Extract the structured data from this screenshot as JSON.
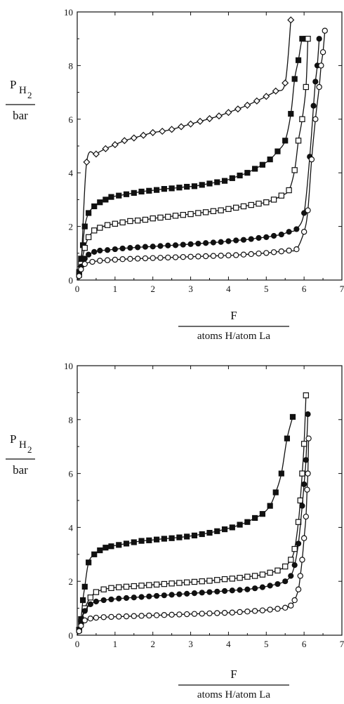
{
  "chart_data": [
    {
      "type": "scatter",
      "title": "",
      "xlabel": "F",
      "xlabel_unit": "atoms H/atom La",
      "ylabel_main": "P",
      "ylabel_sub": "H",
      "ylabel_subsub": "2",
      "ylabel_unit": "bar",
      "xlim": [
        0,
        7
      ],
      "ylim": [
        0,
        10
      ],
      "xticks": [
        "0",
        "1",
        "2",
        "3",
        "4",
        "5",
        "6",
        "7"
      ],
      "yticks": [
        "0",
        "2",
        "4",
        "6",
        "8",
        "10"
      ],
      "grid": false,
      "series": [
        {
          "marker": "diamond-open",
          "x": [
            0.1,
            0.25,
            0.5,
            0.75,
            1.0,
            1.25,
            1.5,
            1.75,
            2.0,
            2.25,
            2.5,
            2.75,
            3.0,
            3.25,
            3.5,
            3.75,
            4.0,
            4.25,
            4.5,
            4.75,
            5.0,
            5.25,
            5.5,
            5.65
          ],
          "y": [
            0.5,
            4.4,
            4.7,
            4.9,
            5.05,
            5.2,
            5.3,
            5.4,
            5.5,
            5.55,
            5.62,
            5.72,
            5.82,
            5.92,
            6.02,
            6.12,
            6.25,
            6.38,
            6.52,
            6.68,
            6.85,
            7.05,
            7.35,
            9.7
          ]
        },
        {
          "marker": "square-filled",
          "x": [
            0.05,
            0.1,
            0.15,
            0.2,
            0.3,
            0.45,
            0.6,
            0.75,
            0.9,
            1.1,
            1.3,
            1.5,
            1.7,
            1.9,
            2.1,
            2.3,
            2.5,
            2.7,
            2.9,
            3.1,
            3.3,
            3.5,
            3.7,
            3.9,
            4.1,
            4.3,
            4.5,
            4.7,
            4.9,
            5.1,
            5.3,
            5.5,
            5.65,
            5.75,
            5.85,
            5.95,
            6.05
          ],
          "y": [
            0.3,
            0.8,
            1.3,
            2.0,
            2.5,
            2.75,
            2.9,
            3.0,
            3.1,
            3.15,
            3.2,
            3.25,
            3.3,
            3.33,
            3.36,
            3.4,
            3.42,
            3.45,
            3.48,
            3.5,
            3.55,
            3.6,
            3.65,
            3.7,
            3.8,
            3.9,
            4.0,
            4.15,
            4.3,
            4.5,
            4.8,
            5.2,
            6.2,
            7.5,
            8.2,
            9.0,
            9.0
          ]
        },
        {
          "marker": "square-open",
          "x": [
            0.05,
            0.1,
            0.2,
            0.3,
            0.45,
            0.6,
            0.8,
            1.0,
            1.2,
            1.4,
            1.6,
            1.8,
            2.0,
            2.2,
            2.4,
            2.6,
            2.8,
            3.0,
            3.2,
            3.4,
            3.6,
            3.8,
            4.0,
            4.2,
            4.4,
            4.6,
            4.8,
            5.0,
            5.2,
            5.4,
            5.6,
            5.75,
            5.85,
            5.95,
            6.05,
            6.1
          ],
          "y": [
            0.2,
            0.6,
            1.2,
            1.6,
            1.85,
            1.95,
            2.05,
            2.1,
            2.15,
            2.2,
            2.22,
            2.25,
            2.3,
            2.33,
            2.36,
            2.4,
            2.43,
            2.46,
            2.5,
            2.53,
            2.57,
            2.6,
            2.65,
            2.7,
            2.75,
            2.8,
            2.85,
            2.9,
            3.0,
            3.15,
            3.35,
            4.1,
            5.2,
            6.0,
            7.2,
            9.0
          ]
        },
        {
          "marker": "circle-filled",
          "x": [
            0.05,
            0.1,
            0.2,
            0.3,
            0.45,
            0.6,
            0.8,
            1.0,
            1.2,
            1.4,
            1.6,
            1.8,
            2.0,
            2.2,
            2.4,
            2.6,
            2.8,
            3.0,
            3.2,
            3.4,
            3.6,
            3.8,
            4.0,
            4.2,
            4.4,
            4.6,
            4.8,
            5.0,
            5.2,
            5.4,
            5.6,
            5.8,
            6.0,
            6.15,
            6.25,
            6.3,
            6.35,
            6.4
          ],
          "y": [
            0.2,
            0.5,
            0.8,
            0.95,
            1.05,
            1.1,
            1.12,
            1.15,
            1.18,
            1.2,
            1.22,
            1.24,
            1.25,
            1.27,
            1.29,
            1.3,
            1.32,
            1.34,
            1.36,
            1.38,
            1.4,
            1.42,
            1.45,
            1.48,
            1.5,
            1.53,
            1.57,
            1.6,
            1.65,
            1.7,
            1.8,
            1.9,
            2.5,
            4.6,
            6.5,
            7.4,
            8.0,
            9.0
          ]
        },
        {
          "marker": "circle-open",
          "x": [
            0.05,
            0.1,
            0.2,
            0.4,
            0.6,
            0.8,
            1.0,
            1.2,
            1.4,
            1.6,
            1.8,
            2.0,
            2.2,
            2.4,
            2.6,
            2.8,
            3.0,
            3.2,
            3.4,
            3.6,
            3.8,
            4.0,
            4.2,
            4.4,
            4.6,
            4.8,
            5.0,
            5.2,
            5.4,
            5.6,
            5.8,
            6.0,
            6.1,
            6.2,
            6.3,
            6.4,
            6.45,
            6.5,
            6.55
          ],
          "y": [
            0.15,
            0.4,
            0.6,
            0.68,
            0.72,
            0.74,
            0.76,
            0.78,
            0.79,
            0.8,
            0.81,
            0.82,
            0.83,
            0.84,
            0.85,
            0.86,
            0.87,
            0.88,
            0.89,
            0.9,
            0.91,
            0.92,
            0.93,
            0.95,
            0.97,
            0.99,
            1.01,
            1.04,
            1.07,
            1.1,
            1.15,
            1.8,
            2.6,
            4.5,
            6.0,
            7.2,
            8.0,
            8.5,
            9.3
          ]
        }
      ]
    },
    {
      "type": "scatter",
      "title": "",
      "xlabel": "F",
      "xlabel_unit": "atoms H/atom La",
      "ylabel_main": "P",
      "ylabel_sub": "H",
      "ylabel_subsub": "2",
      "ylabel_unit": "bar",
      "xlim": [
        0,
        7
      ],
      "ylim": [
        0,
        10
      ],
      "xticks": [
        "0",
        "1",
        "2",
        "3",
        "4",
        "5",
        "6",
        "7"
      ],
      "yticks": [
        "0",
        "2",
        "4",
        "6",
        "8",
        "10"
      ],
      "grid": false,
      "series": [
        {
          "marker": "square-filled",
          "x": [
            0.05,
            0.1,
            0.15,
            0.2,
            0.3,
            0.45,
            0.6,
            0.75,
            0.9,
            1.1,
            1.3,
            1.5,
            1.7,
            1.9,
            2.1,
            2.3,
            2.5,
            2.7,
            2.9,
            3.1,
            3.3,
            3.5,
            3.7,
            3.9,
            4.1,
            4.3,
            4.5,
            4.7,
            4.9,
            5.1,
            5.25,
            5.4,
            5.55,
            5.7
          ],
          "y": [
            0.2,
            0.6,
            1.3,
            1.8,
            2.7,
            3.0,
            3.15,
            3.25,
            3.3,
            3.35,
            3.4,
            3.45,
            3.5,
            3.52,
            3.55,
            3.58,
            3.6,
            3.63,
            3.66,
            3.7,
            3.75,
            3.8,
            3.86,
            3.93,
            4.0,
            4.1,
            4.2,
            4.35,
            4.5,
            4.8,
            5.3,
            6.0,
            7.3,
            8.1
          ]
        },
        {
          "marker": "square-open",
          "x": [
            0.05,
            0.1,
            0.2,
            0.35,
            0.5,
            0.7,
            0.9,
            1.1,
            1.3,
            1.5,
            1.7,
            1.9,
            2.1,
            2.3,
            2.5,
            2.7,
            2.9,
            3.1,
            3.3,
            3.5,
            3.7,
            3.9,
            4.1,
            4.3,
            4.5,
            4.7,
            4.9,
            5.1,
            5.3,
            5.5,
            5.65,
            5.75,
            5.85,
            5.9,
            5.95,
            6.0,
            6.05
          ],
          "y": [
            0.2,
            0.5,
            1.0,
            1.4,
            1.6,
            1.7,
            1.75,
            1.78,
            1.8,
            1.82,
            1.84,
            1.86,
            1.88,
            1.9,
            1.92,
            1.94,
            1.96,
            1.98,
            2.0,
            2.02,
            2.05,
            2.08,
            2.1,
            2.13,
            2.17,
            2.2,
            2.25,
            2.32,
            2.4,
            2.55,
            2.8,
            3.2,
            4.2,
            5.0,
            6.0,
            7.1,
            8.9
          ]
        },
        {
          "marker": "circle-filled",
          "x": [
            0.05,
            0.1,
            0.2,
            0.35,
            0.5,
            0.7,
            0.9,
            1.1,
            1.3,
            1.5,
            1.7,
            1.9,
            2.1,
            2.3,
            2.5,
            2.7,
            2.9,
            3.1,
            3.3,
            3.5,
            3.7,
            3.9,
            4.1,
            4.3,
            4.5,
            4.7,
            4.9,
            5.1,
            5.3,
            5.5,
            5.65,
            5.75,
            5.85,
            5.95,
            6.0,
            6.05,
            6.1
          ],
          "y": [
            0.2,
            0.5,
            0.9,
            1.15,
            1.25,
            1.3,
            1.33,
            1.36,
            1.38,
            1.4,
            1.42,
            1.44,
            1.46,
            1.48,
            1.5,
            1.52,
            1.54,
            1.56,
            1.58,
            1.6,
            1.62,
            1.64,
            1.66,
            1.68,
            1.7,
            1.74,
            1.78,
            1.84,
            1.9,
            2.0,
            2.2,
            2.6,
            3.4,
            4.8,
            5.6,
            6.5,
            8.2
          ]
        },
        {
          "marker": "circle-open",
          "x": [
            0.05,
            0.1,
            0.2,
            0.35,
            0.5,
            0.7,
            0.9,
            1.1,
            1.3,
            1.5,
            1.7,
            1.9,
            2.1,
            2.3,
            2.5,
            2.7,
            2.9,
            3.1,
            3.3,
            3.5,
            3.7,
            3.9,
            4.1,
            4.3,
            4.5,
            4.7,
            4.9,
            5.1,
            5.3,
            5.5,
            5.65,
            5.75,
            5.85,
            5.9,
            5.95,
            6.0,
            6.05,
            6.08,
            6.1,
            6.12
          ],
          "y": [
            0.15,
            0.35,
            0.55,
            0.62,
            0.65,
            0.67,
            0.68,
            0.69,
            0.7,
            0.71,
            0.72,
            0.73,
            0.74,
            0.75,
            0.76,
            0.77,
            0.78,
            0.79,
            0.8,
            0.81,
            0.82,
            0.83,
            0.84,
            0.86,
            0.88,
            0.9,
            0.92,
            0.95,
            0.98,
            1.02,
            1.1,
            1.3,
            1.7,
            2.2,
            2.8,
            3.6,
            4.4,
            5.4,
            6.0,
            7.3
          ]
        }
      ]
    }
  ]
}
